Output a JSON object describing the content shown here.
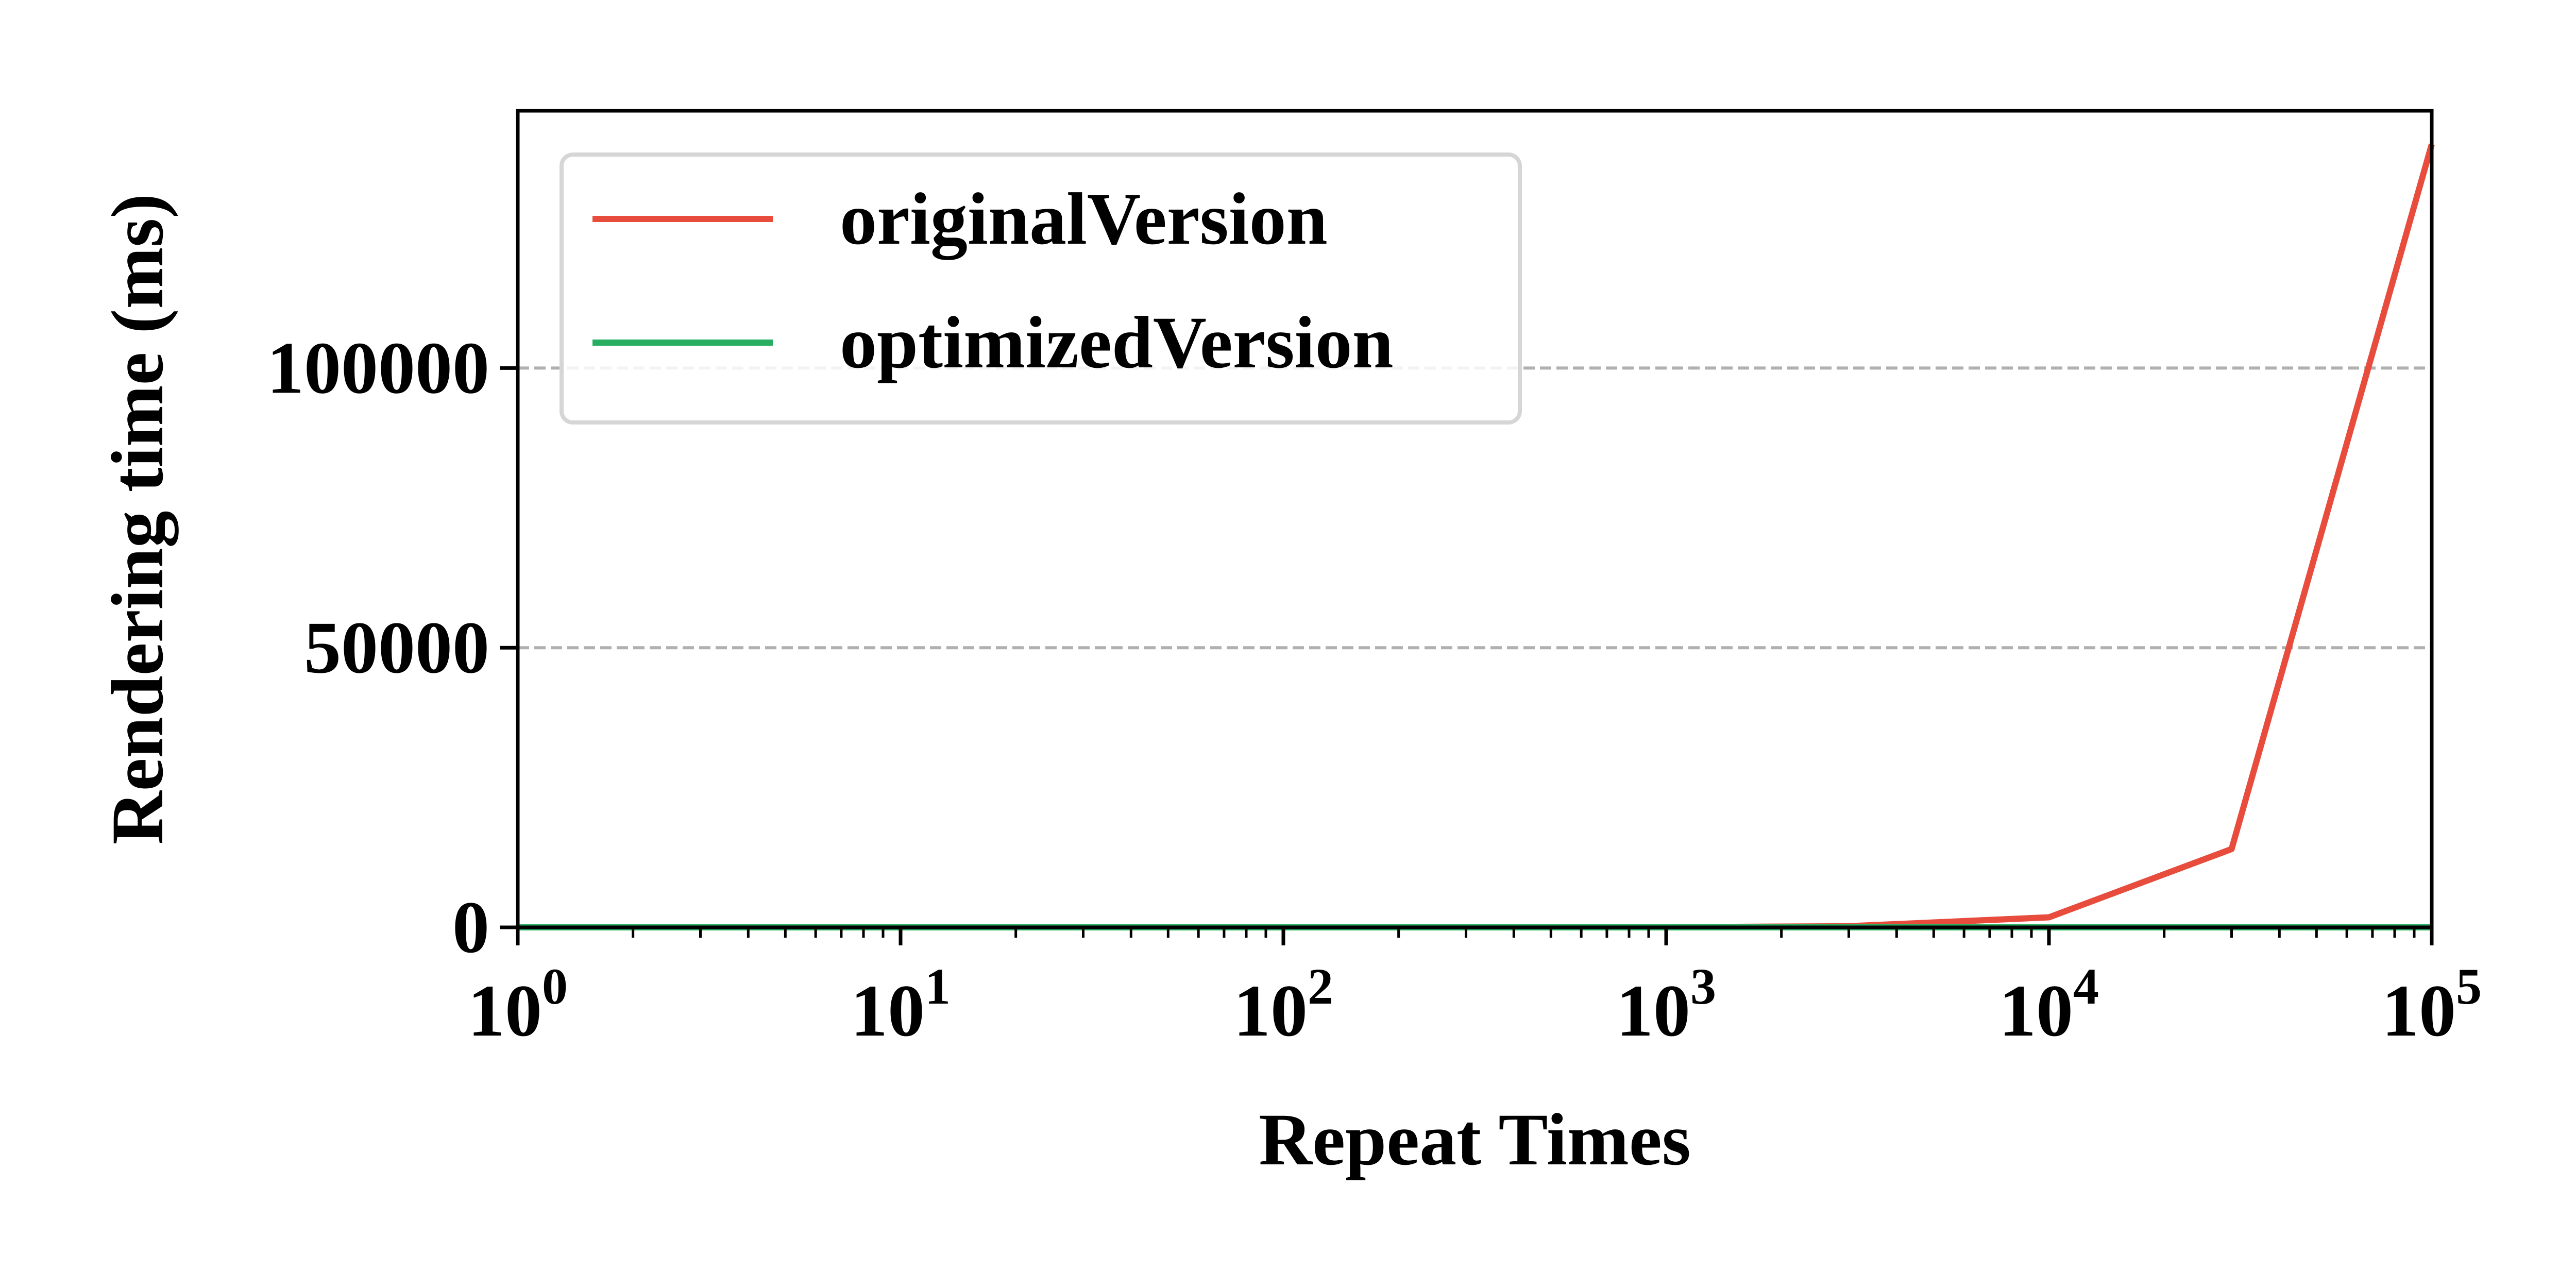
{
  "chart_data": {
    "type": "line",
    "xlabel": "Repeat Times",
    "ylabel": "Rendering time (ms)",
    "xscale": "log",
    "xlim": [
      1,
      100000
    ],
    "ylim": [
      0,
      146000
    ],
    "x_ticks": [
      {
        "value": 1,
        "base": "10",
        "exp": "0"
      },
      {
        "value": 10,
        "base": "10",
        "exp": "1"
      },
      {
        "value": 100,
        "base": "10",
        "exp": "2"
      },
      {
        "value": 1000,
        "base": "10",
        "exp": "3"
      },
      {
        "value": 10000,
        "base": "10",
        "exp": "4"
      },
      {
        "value": 100000,
        "base": "10",
        "exp": "5"
      }
    ],
    "y_ticks": [
      {
        "value": 0,
        "label": "0"
      },
      {
        "value": 50000,
        "label": "50000"
      },
      {
        "value": 100000,
        "label": "100000"
      }
    ],
    "grid": "horizontal-dashed",
    "legend_position": "top-left",
    "series": [
      {
        "name": "originalVersion",
        "color": "#e74c3c",
        "x": [
          1,
          3,
          10,
          30,
          100,
          300,
          1000,
          3000,
          10000,
          30000,
          100000
        ],
        "y": [
          0,
          0,
          0,
          0,
          0,
          5,
          30,
          200,
          1800,
          14000,
          140000
        ]
      },
      {
        "name": "optimizedVersion",
        "color": "#27ae60",
        "x": [
          1,
          3,
          10,
          30,
          100,
          300,
          1000,
          3000,
          10000,
          30000,
          100000
        ],
        "y": [
          0,
          0,
          0,
          0,
          0,
          0,
          0,
          0,
          0,
          0,
          0
        ]
      }
    ]
  }
}
